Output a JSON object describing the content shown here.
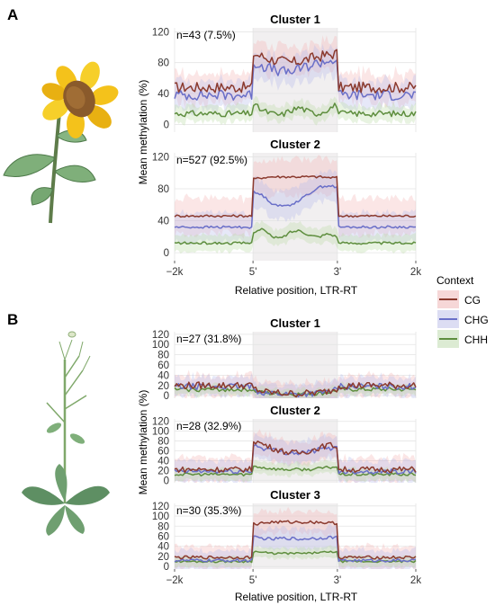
{
  "panels": [
    {
      "label": "A",
      "plant": "sunflower-illustration",
      "ylabel": "Mean methylation (%)",
      "xlabel": "Relative position, LTR-RT",
      "xtick_labels": [
        "−2k",
        "5'",
        "3'",
        "2k"
      ]
    },
    {
      "label": "B",
      "plant": "rosette-plant-illustration",
      "ylabel": "Mean methylation (%)",
      "xlabel": "Relative position, LTR-RT",
      "xtick_labels": [
        "−2k",
        "5'",
        "3'",
        "2k"
      ]
    }
  ],
  "legend": {
    "title": "Context",
    "placement": "right",
    "items": [
      {
        "name": "CG",
        "color": "#8B3A2E"
      },
      {
        "name": "CHG",
        "color": "#6A6FC8"
      },
      {
        "name": "CHH",
        "color": "#5E8E3E"
      }
    ]
  },
  "colors": {
    "CG": "#8B3A2E",
    "CHG": "#6A6FC8",
    "CHH": "#5E8E3E",
    "region_band": "#F3E6E6",
    "grid": "#EBEBEB"
  },
  "chart_data": [
    {
      "type": "line",
      "panel": "A",
      "title": "Cluster 1",
      "annotation": "n=43 (7.5%)",
      "xlim": [
        -2000,
        2000
      ],
      "ylim": [
        -10,
        125
      ],
      "yticks": [
        0,
        40,
        80,
        120
      ],
      "flanks": [
        -2000,
        2000
      ],
      "profiles": {
        "CG": {
          "flank": 48,
          "body": [
            92,
            88,
            84,
            82,
            80,
            82,
            85,
            88,
            90,
            92
          ],
          "amp": 7,
          "band": 18
        },
        "CHG": {
          "flank": 38,
          "body": [
            80,
            76,
            72,
            68,
            68,
            72,
            76,
            80,
            82,
            84
          ],
          "amp": 7,
          "band": 18
        },
        "CHH": {
          "flank": 14,
          "body": [
            26,
            18,
            14,
            12,
            18,
            22,
            16,
            14,
            20,
            26
          ],
          "amp": 4,
          "band": 10
        }
      }
    },
    {
      "type": "line",
      "panel": "A",
      "title": "Cluster 2",
      "annotation": "n=527 (92.5%)",
      "xlim": [
        -2000,
        2000
      ],
      "ylim": [
        -10,
        125
      ],
      "yticks": [
        0,
        40,
        80,
        120
      ],
      "flanks": [
        -2000,
        2000
      ],
      "profiles": {
        "CG": {
          "flank": 46,
          "body": [
            92,
            94,
            95,
            95,
            95,
            95,
            95,
            95,
            94,
            94
          ],
          "amp": 1.5,
          "band": 22
        },
        "CHG": {
          "flank": 32,
          "body": [
            76,
            72,
            62,
            58,
            60,
            66,
            74,
            82,
            84,
            82
          ],
          "amp": 1.5,
          "band": 18
        },
        "CHH": {
          "flank": 12,
          "body": [
            26,
            30,
            20,
            18,
            26,
            28,
            22,
            20,
            24,
            20
          ],
          "amp": 1.5,
          "band": 10
        }
      }
    },
    {
      "type": "line",
      "panel": "B",
      "title": "Cluster 1",
      "annotation": "n=27 (31.8%)",
      "xlim": [
        -2000,
        2000
      ],
      "ylim": [
        -5,
        125
      ],
      "yticks": [
        0,
        20,
        40,
        60,
        80,
        100,
        120
      ],
      "flanks": [
        -2000,
        2000
      ],
      "profiles": {
        "CG": {
          "flank": 20,
          "body": [
            14,
            8,
            6,
            5,
            4,
            4,
            5,
            6,
            9,
            14
          ],
          "amp": 7,
          "band": 20
        },
        "CHG": {
          "flank": 18,
          "body": [
            12,
            7,
            5,
            4,
            3,
            3,
            4,
            5,
            8,
            12
          ],
          "amp": 6,
          "band": 18
        },
        "CHH": {
          "flank": 12,
          "body": [
            10,
            6,
            4,
            4,
            3,
            3,
            4,
            4,
            6,
            10
          ],
          "amp": 4,
          "band": 10
        }
      }
    },
    {
      "type": "line",
      "panel": "B",
      "title": "Cluster 2",
      "annotation": "n=28 (32.9%)",
      "xlim": [
        -2000,
        2000
      ],
      "ylim": [
        -5,
        125
      ],
      "yticks": [
        0,
        20,
        40,
        60,
        80,
        100,
        120
      ],
      "flanks": [
        -2000,
        2000
      ],
      "profiles": {
        "CG": {
          "flank": 22,
          "body": [
            82,
            74,
            66,
            60,
            56,
            56,
            60,
            66,
            72,
            70
          ],
          "amp": 6,
          "band": 24
        },
        "CHG": {
          "flank": 18,
          "body": [
            72,
            66,
            62,
            58,
            56,
            56,
            58,
            62,
            66,
            66
          ],
          "amp": 5,
          "band": 22
        },
        "CHH": {
          "flank": 12,
          "body": [
            30,
            26,
            24,
            22,
            22,
            22,
            22,
            24,
            26,
            28
          ],
          "amp": 3,
          "band": 12
        }
      }
    },
    {
      "type": "line",
      "panel": "B",
      "title": "Cluster 3",
      "annotation": "n=30 (35.3%)",
      "xlim": [
        -2000,
        2000
      ],
      "ylim": [
        -5,
        125
      ],
      "yticks": [
        0,
        20,
        40,
        60,
        80,
        100,
        120
      ],
      "flanks": [
        -2000,
        2000
      ],
      "profiles": {
        "CG": {
          "flank": 18,
          "body": [
            84,
            86,
            88,
            88,
            88,
            88,
            88,
            88,
            86,
            86
          ],
          "amp": 3,
          "band": 22
        },
        "CHG": {
          "flank": 12,
          "body": [
            58,
            56,
            54,
            56,
            56,
            54,
            56,
            56,
            58,
            58
          ],
          "amp": 3,
          "band": 20
        },
        "CHH": {
          "flank": 10,
          "body": [
            30,
            28,
            26,
            26,
            26,
            26,
            26,
            28,
            28,
            30
          ],
          "amp": 2,
          "band": 10
        }
      }
    }
  ]
}
